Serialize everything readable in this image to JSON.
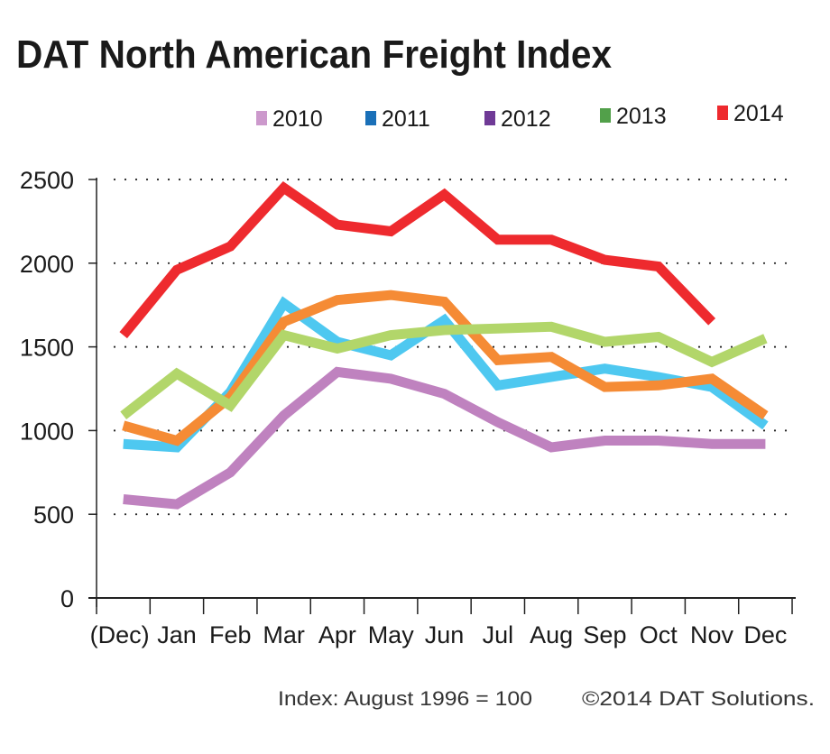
{
  "chart_data": {
    "type": "line",
    "title": "DAT North American Freight Index",
    "categories": [
      "(Dec)",
      "Jan",
      "Feb",
      "Mar",
      "Apr",
      "May",
      "Jun",
      "Jul",
      "Aug",
      "Sep",
      "Oct",
      "Nov",
      "Dec"
    ],
    "yticks": [
      "0",
      "500",
      "1000",
      "1500",
      "2000",
      "2500"
    ],
    "ylim": [
      0,
      2500
    ],
    "grid": "horizontal dotted",
    "legend_position": "top-right",
    "legend": [
      {
        "label": "2010",
        "color": "#cc99cc"
      },
      {
        "label": "2011",
        "color": "#1a70b8"
      },
      {
        "label": "2012",
        "color": "#6f3a96"
      },
      {
        "label": "2013",
        "color": "#52a04a"
      },
      {
        "label": "2014",
        "color": "#ee2a2e"
      }
    ],
    "series": [
      {
        "name": "2010",
        "color": "#bf82bf",
        "values": [
          590,
          560,
          750,
          1090,
          1350,
          1310,
          1220,
          1050,
          900,
          940,
          940,
          920,
          920
        ]
      },
      {
        "name": "2011",
        "color": "#4ec8f0",
        "values": [
          920,
          900,
          1230,
          1760,
          1530,
          1450,
          1660,
          1270,
          1320,
          1370,
          1320,
          1260,
          1030
        ]
      },
      {
        "name": "2012",
        "color": "#f58b35",
        "values": [
          1030,
          940,
          1200,
          1650,
          1780,
          1810,
          1770,
          1420,
          1440,
          1260,
          1270,
          1310,
          1090
        ]
      },
      {
        "name": "2013",
        "color": "#b2d66a",
        "values": [
          1090,
          1340,
          1150,
          1570,
          1490,
          1570,
          1600,
          1610,
          1620,
          1530,
          1560,
          1410,
          1550
        ]
      },
      {
        "name": "2014",
        "color": "#ee2a2e",
        "values": [
          1570,
          1960,
          2100,
          2450,
          2230,
          2190,
          2410,
          2140,
          2140,
          2020,
          1980,
          1650,
          null
        ]
      }
    ],
    "footnotes": {
      "index_note": "Index: August 1996 = 100",
      "copyright": "©2014 DAT Solutions."
    }
  }
}
